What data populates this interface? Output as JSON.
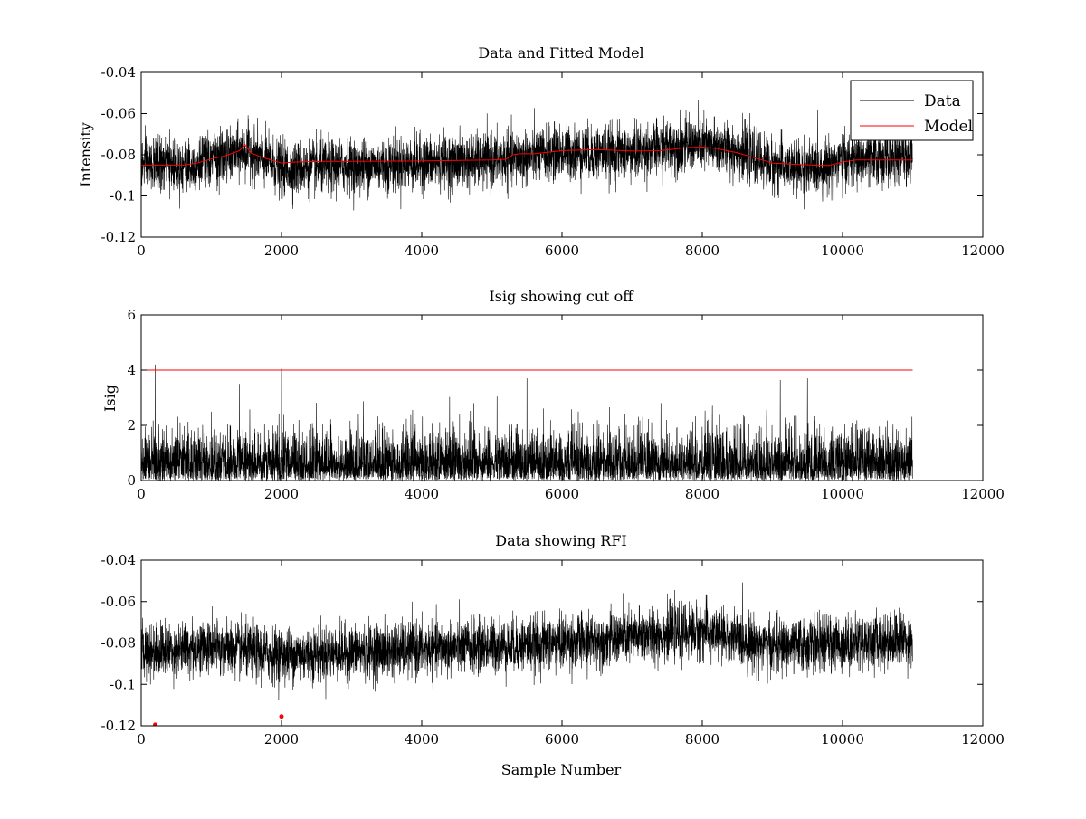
{
  "colors": {
    "data": "#000000",
    "model": "#ff0000",
    "cutoff": "#ff0000",
    "rfi": "#ff0000",
    "background": "#ffffff"
  },
  "chart_data": [
    {
      "type": "line",
      "title": "Data and Fitted Model",
      "xlabel": "",
      "ylabel": "Intensity",
      "xlim": [
        0,
        12000
      ],
      "ylim": [
        -0.12,
        -0.04
      ],
      "xticks": [
        0,
        2000,
        4000,
        6000,
        8000,
        10000,
        12000
      ],
      "xtick_labels": [
        "0",
        "2000",
        "4000",
        "6000",
        "8000",
        "10000",
        "12000"
      ],
      "yticks": [
        -0.12,
        -0.1,
        -0.08,
        -0.06,
        -0.04
      ],
      "ytick_labels": [
        "-0.12",
        "-0.1",
        "-0.08",
        "-0.06",
        "-0.04"
      ],
      "grid": false,
      "legend": {
        "placement": "top-right",
        "entries": [
          "Data",
          "Model"
        ]
      },
      "series": [
        {
          "name": "Data",
          "color": "#000000",
          "kind": "noise",
          "n": 11000,
          "baseline_x": [
            0,
            700,
            1000,
            1500,
            2000,
            4000,
            5000,
            5500,
            6000,
            7000,
            7500,
            8000,
            8500,
            9000,
            9500,
            10000,
            11000
          ],
          "baseline_y": [
            -0.085,
            -0.085,
            -0.083,
            -0.078,
            -0.087,
            -0.084,
            -0.083,
            -0.081,
            -0.079,
            -0.079,
            -0.076,
            -0.075,
            -0.078,
            -0.085,
            -0.087,
            -0.083,
            -0.081
          ],
          "noise_sd": 0.0065
        },
        {
          "name": "Model",
          "color": "#ff0000",
          "x": [
            0,
            600,
            700,
            800,
            1000,
            1200,
            1400,
            1480,
            1560,
            1700,
            1900,
            2000,
            2200,
            2600,
            3000,
            4000,
            5000,
            5200,
            5300,
            5400,
            5600,
            6000,
            6500,
            7000,
            7400,
            7800,
            8000,
            8200,
            8500,
            8800,
            9000,
            9400,
            9600,
            9800,
            10000,
            10200,
            10500,
            11000
          ],
          "y": [
            -0.085,
            -0.085,
            -0.0845,
            -0.084,
            -0.082,
            -0.0805,
            -0.078,
            -0.075,
            -0.079,
            -0.081,
            -0.083,
            -0.084,
            -0.0835,
            -0.0832,
            -0.0832,
            -0.083,
            -0.0825,
            -0.0822,
            -0.08,
            -0.0795,
            -0.0795,
            -0.078,
            -0.0775,
            -0.0782,
            -0.078,
            -0.0765,
            -0.0762,
            -0.077,
            -0.079,
            -0.082,
            -0.084,
            -0.0848,
            -0.085,
            -0.0852,
            -0.0835,
            -0.0825,
            -0.0825,
            -0.0825
          ]
        }
      ]
    },
    {
      "type": "line",
      "title": "Isig showing cut off",
      "xlabel": "",
      "ylabel": "Isig",
      "xlim": [
        0,
        12000
      ],
      "ylim": [
        0,
        6
      ],
      "xticks": [
        0,
        2000,
        4000,
        6000,
        8000,
        10000,
        12000
      ],
      "xtick_labels": [
        "0",
        "2000",
        "4000",
        "6000",
        "8000",
        "10000",
        "12000"
      ],
      "yticks": [
        0,
        2,
        4,
        6
      ],
      "ytick_labels": [
        "0",
        "2",
        "4",
        "6"
      ],
      "grid": false,
      "series": [
        {
          "name": "Isig",
          "color": "#000000",
          "kind": "abs-noise",
          "n": 11000,
          "x_start": 0,
          "x_end": 11000,
          "noise_sd": 0.85,
          "spikes": [
            [
              200,
              4.2
            ],
            [
              2000,
              4.05
            ],
            [
              1400,
              3.5
            ],
            [
              5500,
              3.7
            ],
            [
              9500,
              3.7
            ]
          ]
        },
        {
          "name": "Cut off",
          "color": "#ff0000",
          "x": [
            0,
            11000
          ],
          "y": [
            4,
            4
          ]
        }
      ]
    },
    {
      "type": "line",
      "title": "Data showing RFI",
      "xlabel": "Sample Number",
      "ylabel": "",
      "xlim": [
        0,
        12000
      ],
      "ylim": [
        -0.12,
        -0.04
      ],
      "xticks": [
        0,
        2000,
        4000,
        6000,
        8000,
        10000,
        12000
      ],
      "xtick_labels": [
        "0",
        "2000",
        "4000",
        "6000",
        "8000",
        "10000",
        "12000"
      ],
      "yticks": [
        -0.12,
        -0.1,
        -0.08,
        -0.06,
        -0.04
      ],
      "ytick_labels": [
        "-0.12",
        "-0.1",
        "-0.08",
        "-0.06",
        "-0.04"
      ],
      "grid": false,
      "series": [
        {
          "name": "Data",
          "color": "#000000",
          "kind": "noise",
          "n": 11000,
          "baseline_x": [
            0,
            1000,
            2000,
            4000,
            6000,
            8000,
            9000,
            10000,
            11000
          ],
          "baseline_y": [
            -0.084,
            -0.082,
            -0.086,
            -0.083,
            -0.08,
            -0.074,
            -0.082,
            -0.08,
            -0.078
          ],
          "noise_sd": 0.0065
        },
        {
          "name": "RFI",
          "color": "#ff0000",
          "kind": "markers",
          "x": [
            200,
            2000
          ],
          "y": [
            -0.1195,
            -0.1155
          ]
        }
      ]
    }
  ]
}
